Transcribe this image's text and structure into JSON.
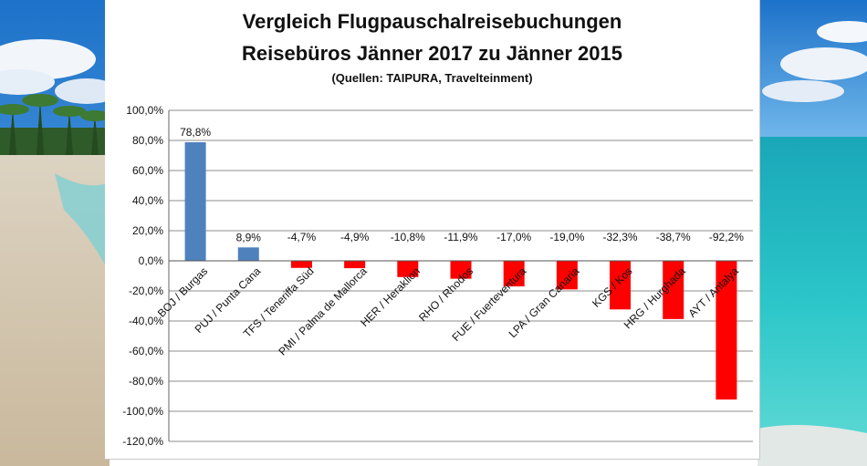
{
  "header": {
    "title_line1": "Vergleich Flugpauschalreisebuchungen",
    "title_line2": "Reisebüros Jänner 2017 zu Jänner 2015",
    "subtitle": "(Quellen: TAIPURA, Travelteinment)"
  },
  "colors": {
    "positive": "#4f81bd",
    "negative": "#ff0000",
    "grid": "#8c8c8c"
  },
  "chart_data": {
    "type": "bar",
    "title": "Vergleich Flugpauschalreisebuchungen Reisebüros Jänner 2017 zu Jänner 2015",
    "subtitle": "(Quellen: TAIPURA, Travelteinment)",
    "categories": [
      "BOJ / Burgas",
      "PUJ / Punta Cana",
      "TFS / Teneriffa Süd",
      "PMI / Palma de Mallorca",
      "HER / Heraklion",
      "RHO / Rhodos",
      "FUE / Fuerteventura",
      "LPA / Gran Canaria",
      "KGS / Kos",
      "HRG / Hurghada",
      "AYT / Antalya"
    ],
    "values": [
      78.8,
      8.9,
      -4.7,
      -4.9,
      -10.8,
      -11.9,
      -17.0,
      -19.0,
      -32.3,
      -38.7,
      -92.2
    ],
    "value_labels": [
      "78,8%",
      "8,9%",
      "-4,7%",
      "-4,9%",
      "-10,8%",
      "-11,9%",
      "-17,0%",
      "-19,0%",
      "-32,3%",
      "-38,7%",
      "-92,2%"
    ],
    "ylim": [
      -120,
      100
    ],
    "yticks": [
      100,
      80,
      60,
      40,
      20,
      0,
      -20,
      -40,
      -60,
      -80,
      -100,
      -120
    ],
    "ytick_labels": [
      "100,0%",
      "80,0%",
      "60,0%",
      "40,0%",
      "20,0%",
      "0,0%",
      "-20,0%",
      "-40,0%",
      "-60,0%",
      "-80,0%",
      "-100,0%",
      "-120,0%"
    ],
    "xlabel": "",
    "ylabel": "",
    "grid": true,
    "legend": "none"
  }
}
